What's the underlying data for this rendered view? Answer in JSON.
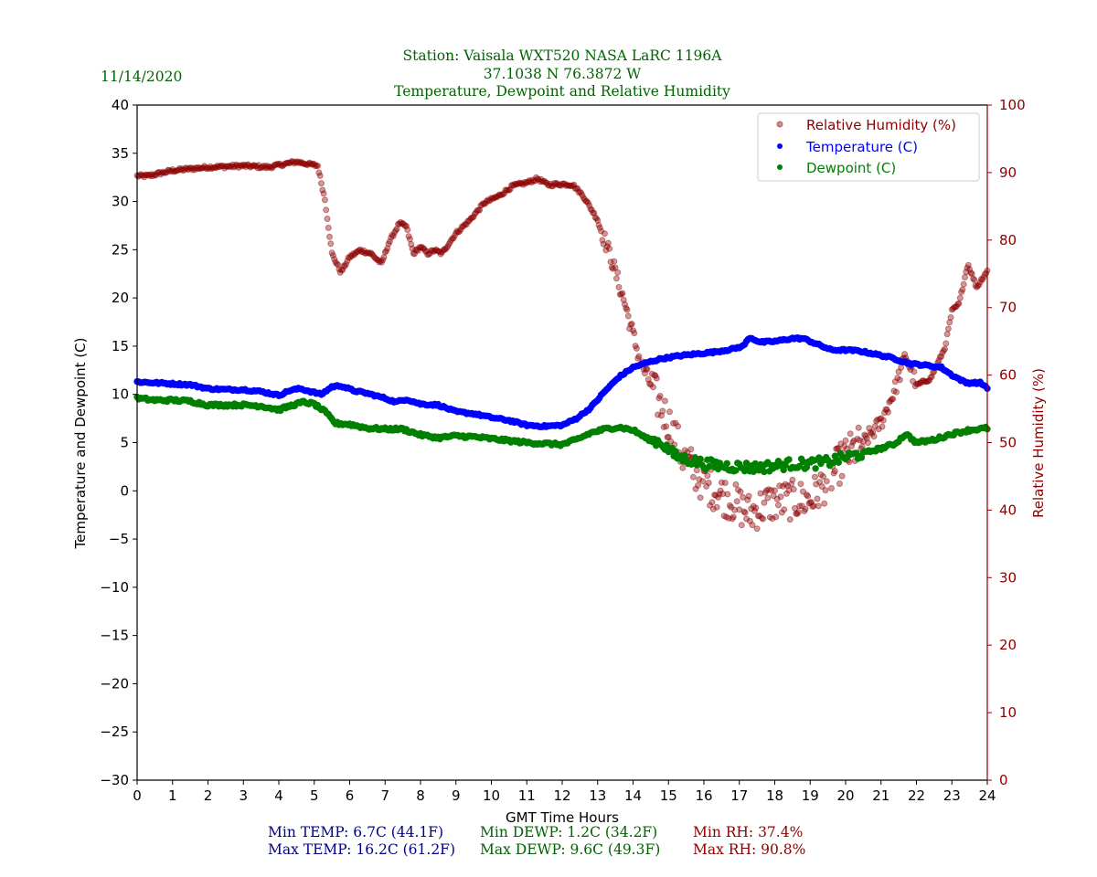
{
  "header": {
    "date": "11/14/2020",
    "title_lines": [
      "Station:  Vaisala WXT520  NASA LaRC 1196A",
      "37.1038 N 76.3872 W",
      "Temperature, Dewpoint and Relative Humidity"
    ]
  },
  "summary": {
    "min_temp": "Min TEMP: 6.7C (44.1F)",
    "max_temp": "Max TEMP: 16.2C (61.2F)",
    "min_dewp": "Min DEWP: 1.2C (34.2F)",
    "max_dewp": "Max DEWP: 9.6C (49.3F)",
    "min_rh": "Min RH: 37.4%",
    "max_rh": "Max RH: 90.8%"
  },
  "colors": {
    "temperature": "#0000ff",
    "dewpoint": "#008000",
    "rh": "#8b0000",
    "title": "#006400",
    "temp_stats": "#00008b",
    "dewp_stats": "#006400",
    "rh_stats": "#8b0000"
  },
  "chart_data": {
    "type": "scatter",
    "xlabel": "GMT Time Hours",
    "ylabel_left": "Temperature and Dewpoint (C)",
    "ylabel_right": "Relative Humidity (%)",
    "xlim": [
      0,
      24
    ],
    "ylim_left": [
      -30,
      40
    ],
    "ylim_right": [
      0,
      100
    ],
    "x_ticks": [
      "0",
      "1",
      "2",
      "3",
      "4",
      "5",
      "6",
      "7",
      "8",
      "9",
      "10",
      "11",
      "12",
      "13",
      "14",
      "15",
      "16",
      "17",
      "18",
      "19",
      "20",
      "21",
      "22",
      "23",
      "24"
    ],
    "y_ticks_left": [
      "40",
      "35",
      "30",
      "25",
      "20",
      "15",
      "10",
      "5",
      "0",
      "−5",
      "−10",
      "−15",
      "−20",
      "−25",
      "−30"
    ],
    "y_ticks_right": [
      "100",
      "90",
      "80",
      "70",
      "60",
      "50",
      "40",
      "30",
      "20",
      "10",
      "0"
    ],
    "legend_position": "top-right",
    "legend": [
      "Relative Humidity (%)",
      "Temperature (C)",
      "Dewpoint (C)"
    ],
    "series": [
      {
        "name": "Relative Humidity (%)",
        "axis": "right",
        "x": [
          0,
          0.3,
          1,
          2,
          3,
          3.7,
          4.5,
          5.1,
          5.3,
          5.5,
          5.75,
          6.0,
          6.3,
          6.6,
          6.9,
          7.1,
          7.4,
          7.6,
          7.8,
          8.0,
          8.2,
          8.4,
          8.6,
          9.0,
          9.4,
          9.8,
          10.2,
          10.6,
          11.0,
          11.3,
          11.6,
          12.0,
          12.3,
          12.6,
          13.0,
          13.4,
          13.8,
          14.2,
          14.6,
          15.0,
          15.4,
          16.0,
          16.6,
          17.3,
          17.8,
          18.4,
          19.0,
          19.5,
          20.0,
          20.5,
          21.0,
          21.4,
          21.7,
          22.0,
          22.4,
          22.8,
          23.0,
          23.2,
          23.45,
          23.7,
          24.0
        ],
        "y": [
          89.5,
          89.5,
          90.3,
          90.8,
          91,
          90.8,
          91.6,
          91,
          86,
          78,
          75.2,
          77.5,
          78.5,
          78,
          76.5,
          79.5,
          82.5,
          82,
          78,
          79,
          78,
          78.5,
          78,
          81,
          83,
          85.5,
          86.5,
          88,
          88.5,
          89.1,
          88.2,
          88.3,
          88.2,
          86.5,
          83,
          77,
          70,
          62,
          57.5,
          53,
          48,
          44,
          42,
          39.5,
          41,
          41.5,
          41.5,
          44.5,
          48,
          50,
          53,
          58,
          63,
          58.5,
          59.5,
          64,
          69.5,
          70.5,
          76.5,
          73,
          75.5
        ]
      },
      {
        "name": "Temperature (C)",
        "axis": "left",
        "x": [
          0,
          0.5,
          1.0,
          1.5,
          2.0,
          2.5,
          3.0,
          3.5,
          4.0,
          4.3,
          4.6,
          4.9,
          5.2,
          5.5,
          5.75,
          6.1,
          6.5,
          7.0,
          7.3,
          7.6,
          8.0,
          8.5,
          9.0,
          9.5,
          10.0,
          10.5,
          11.0,
          11.5,
          12.0,
          12.4,
          12.8,
          13.2,
          13.6,
          14.0,
          14.4,
          14.8,
          15.3,
          15.8,
          16.3,
          16.8,
          17.1,
          17.3,
          17.6,
          18.0,
          18.5,
          18.8,
          19.2,
          19.6,
          20.0,
          20.4,
          20.8,
          21.3,
          21.8,
          22.3,
          22.7,
          23.0,
          23.4,
          23.8,
          24.0
        ],
        "y": [
          11.3,
          11.2,
          11.1,
          11.0,
          10.6,
          10.5,
          10.5,
          10.3,
          9.9,
          10.4,
          10.6,
          10.3,
          10.0,
          10.8,
          10.9,
          10.4,
          10.1,
          9.6,
          9.2,
          9.5,
          9.0,
          8.9,
          8.2,
          8.0,
          7.6,
          7.3,
          6.8,
          6.7,
          6.8,
          7.5,
          8.6,
          10.3,
          11.8,
          12.8,
          13.3,
          13.7,
          14.0,
          14.2,
          14.4,
          14.7,
          15.0,
          15.9,
          15.4,
          15.5,
          15.8,
          15.8,
          15.2,
          14.6,
          14.6,
          14.5,
          14.2,
          13.8,
          13.2,
          13.0,
          12.8,
          12.0,
          11.2,
          11.2,
          10.7
        ]
      },
      {
        "name": "Dewpoint (C)",
        "axis": "left",
        "x": [
          0,
          0.5,
          1.0,
          1.5,
          2.0,
          2.5,
          3.0,
          3.5,
          4.0,
          4.4,
          4.7,
          5.0,
          5.3,
          5.6,
          6.0,
          6.5,
          7.0,
          7.5,
          8.0,
          8.5,
          9.0,
          9.5,
          10.0,
          10.5,
          11.0,
          11.5,
          12.0,
          12.4,
          12.8,
          13.2,
          13.6,
          14.0,
          14.4,
          14.8,
          15.2,
          15.6,
          16.0,
          16.5,
          17.0,
          17.5,
          18.0,
          18.5,
          19.0,
          19.5,
          20.0,
          20.5,
          21.0,
          21.4,
          21.7,
          22.0,
          22.5,
          23.0,
          23.5,
          24.0
        ],
        "y": [
          9.6,
          9.4,
          9.4,
          9.3,
          8.9,
          8.9,
          8.9,
          8.8,
          8.4,
          8.9,
          9.2,
          9.0,
          8.2,
          7.0,
          6.9,
          6.5,
          6.4,
          6.4,
          5.8,
          5.5,
          5.7,
          5.6,
          5.4,
          5.2,
          5.0,
          4.9,
          4.8,
          5.3,
          6.0,
          6.4,
          6.6,
          6.3,
          5.4,
          5.0,
          3.6,
          3.2,
          2.8,
          2.6,
          2.5,
          2.4,
          2.6,
          2.8,
          2.8,
          3.0,
          3.5,
          3.9,
          4.4,
          4.9,
          5.9,
          5.0,
          5.3,
          5.9,
          6.3,
          6.5
        ]
      }
    ]
  }
}
